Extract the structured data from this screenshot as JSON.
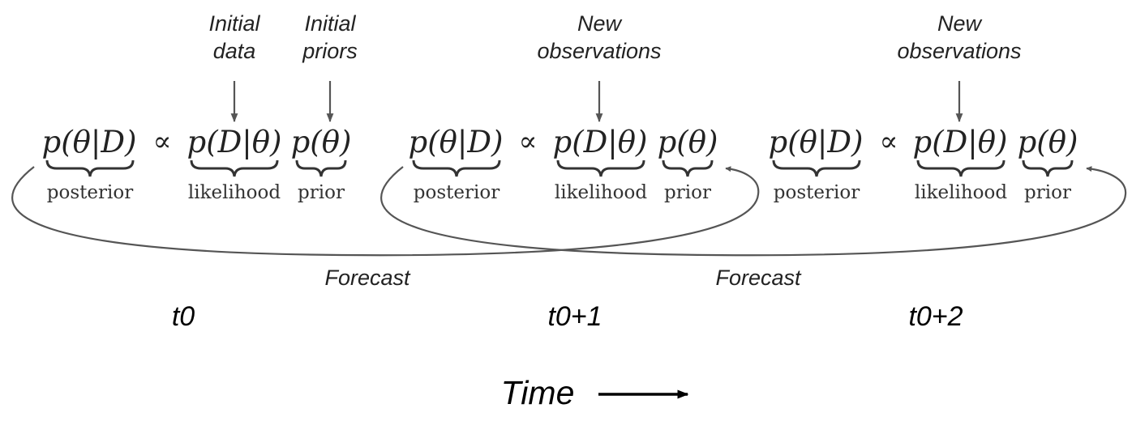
{
  "annotations": {
    "initial_data": [
      "Initial",
      "data"
    ],
    "initial_priors": [
      "Initial",
      "priors"
    ],
    "new_observations_1": [
      "New",
      "observations"
    ],
    "new_observations_2": [
      "New",
      "observations"
    ]
  },
  "equation": {
    "posterior_expr": "p(θ|D)",
    "proportional": "∝",
    "likelihood_expr": "p(D|θ)",
    "prior_expr": "p(θ)",
    "posterior_label": "posterior",
    "likelihood_label": "likelihood",
    "prior_label": "prior"
  },
  "forecast_labels": [
    "Forecast",
    "Forecast"
  ],
  "time_steps": [
    "t0",
    "t0+1",
    "t0+2"
  ],
  "time_axis_label": "Time",
  "colors": {
    "arrow": "#555555",
    "text": "#222222",
    "bold": "#000000"
  }
}
